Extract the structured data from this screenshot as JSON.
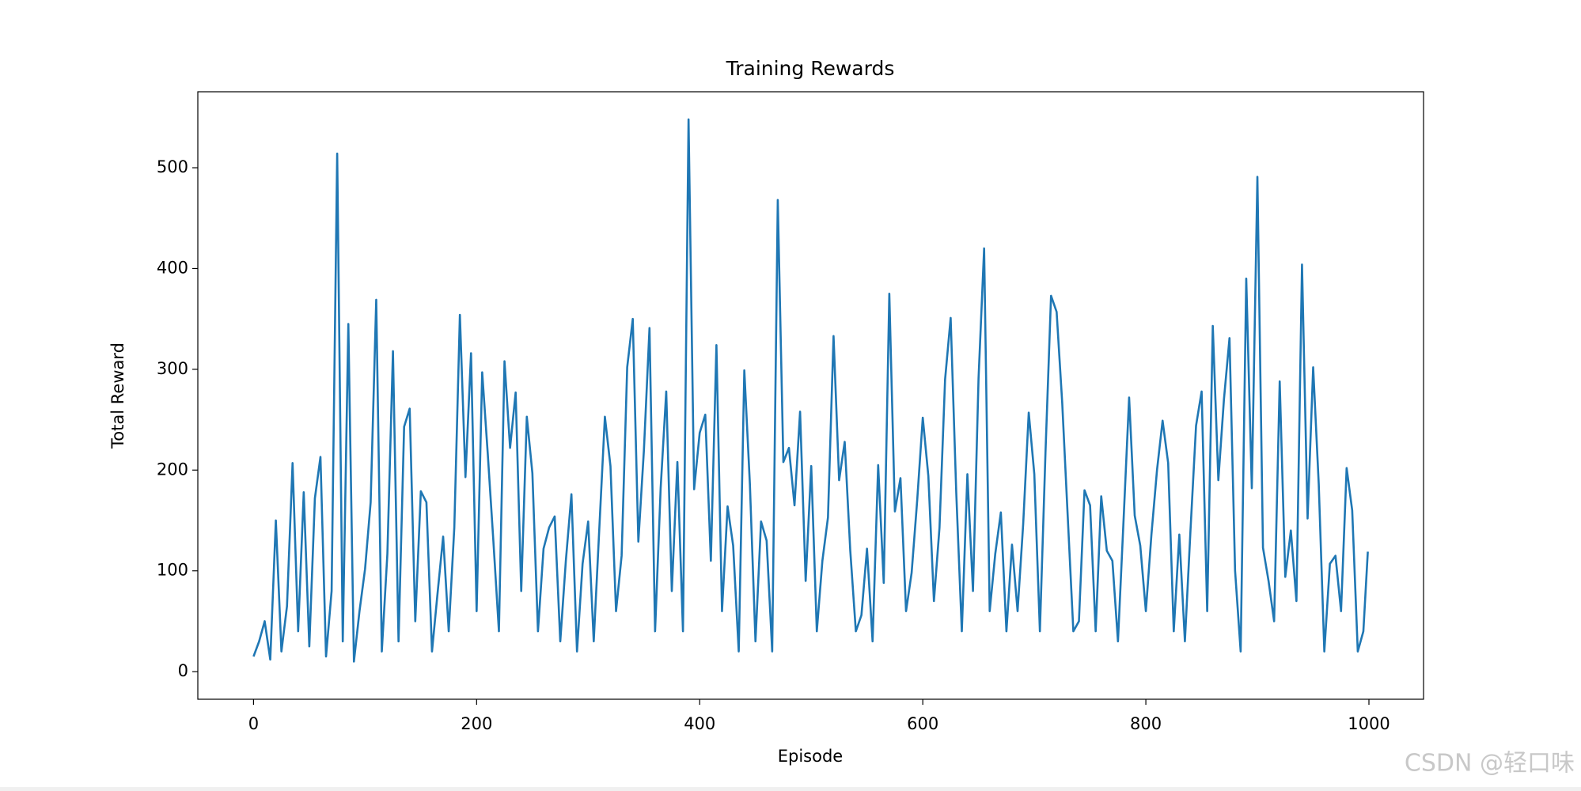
{
  "chart_data": {
    "type": "line",
    "title": "Training Rewards",
    "x_label": "Episode",
    "y_label": "Total Reward",
    "x": [
      0,
      5,
      10,
      15,
      20,
      25,
      30,
      35,
      40,
      45,
      50,
      55,
      60,
      65,
      70,
      75,
      80,
      85,
      90,
      95,
      100,
      105,
      110,
      115,
      120,
      125,
      130,
      135,
      140,
      145,
      150,
      155,
      160,
      165,
      170,
      175,
      180,
      185,
      190,
      195,
      200,
      205,
      210,
      215,
      220,
      225,
      230,
      235,
      240,
      245,
      250,
      255,
      260,
      265,
      270,
      275,
      280,
      285,
      290,
      295,
      300,
      305,
      310,
      315,
      320,
      325,
      330,
      335,
      340,
      345,
      350,
      355,
      360,
      365,
      370,
      375,
      380,
      385,
      390,
      395,
      400,
      405,
      410,
      415,
      420,
      425,
      430,
      435,
      440,
      445,
      450,
      455,
      460,
      465,
      470,
      475,
      480,
      485,
      490,
      495,
      500,
      505,
      510,
      515,
      520,
      525,
      530,
      535,
      540,
      545,
      550,
      555,
      560,
      565,
      570,
      575,
      580,
      585,
      590,
      595,
      600,
      605,
      610,
      615,
      620,
      625,
      630,
      635,
      640,
      645,
      650,
      655,
      660,
      665,
      670,
      675,
      680,
      685,
      690,
      695,
      700,
      705,
      710,
      715,
      720,
      725,
      730,
      735,
      740,
      745,
      750,
      755,
      760,
      765,
      770,
      775,
      780,
      785,
      790,
      795,
      800,
      805,
      810,
      815,
      820,
      825,
      830,
      835,
      840,
      845,
      850,
      855,
      860,
      865,
      870,
      875,
      880,
      885,
      890,
      895,
      900,
      905,
      910,
      915,
      920,
      925,
      930,
      935,
      940,
      945,
      950,
      955,
      960,
      965,
      970,
      975,
      980,
      985,
      990,
      995,
      999
    ],
    "series": [
      {
        "name": "Total Reward",
        "color": "#1f77b4",
        "values": [
          15,
          30,
          50,
          12,
          150,
          20,
          65,
          207,
          40,
          178,
          25,
          172,
          213,
          15,
          80,
          514,
          30,
          345,
          10,
          60,
          102,
          168,
          369,
          20,
          117,
          318,
          30,
          243,
          261,
          50,
          179,
          168,
          20,
          78,
          134,
          40,
          143,
          354,
          193,
          316,
          60,
          297,
          216,
          130,
          40,
          308,
          222,
          277,
          80,
          253,
          197,
          40,
          122,
          143,
          154,
          30,
          110,
          176,
          20,
          107,
          149,
          30,
          142,
          253,
          204,
          60,
          115,
          302,
          350,
          129,
          220,
          341,
          40,
          182,
          278,
          80,
          208,
          40,
          548,
          181,
          237,
          255,
          110,
          324,
          60,
          164,
          125,
          20,
          299,
          186,
          30,
          149,
          130,
          20,
          468,
          208,
          222,
          165,
          258,
          90,
          204,
          40,
          110,
          153,
          333,
          190,
          228,
          120,
          40,
          56,
          122,
          30,
          205,
          88,
          375,
          159,
          192,
          60,
          98,
          170,
          252,
          194,
          70,
          143,
          290,
          351,
          178,
          40,
          196,
          80,
          291,
          420,
          60,
          117,
          158,
          40,
          126,
          60,
          146,
          257,
          196,
          40,
          217,
          373,
          357,
          267,
          153,
          40,
          50,
          180,
          165,
          40,
          174,
          120,
          110,
          30,
          150,
          272,
          155,
          125,
          60,
          136,
          200,
          249,
          207,
          40,
          136,
          30,
          140,
          244,
          278,
          60,
          343,
          190,
          270,
          331,
          100,
          20,
          390,
          182,
          491,
          123,
          90,
          50,
          288,
          94,
          140,
          70,
          404,
          152,
          302,
          186,
          20,
          107,
          115,
          60,
          202,
          160,
          20,
          40,
          119
        ]
      }
    ],
    "xlim": [
      -49.95,
      1048.95
    ],
    "ylim": [
      -27.4,
      575.4
    ],
    "xticks": [
      0,
      200,
      400,
      600,
      800,
      1000
    ],
    "yticks": [
      0,
      100,
      200,
      300,
      400,
      500
    ]
  },
  "watermark": "CSDN @轻口味"
}
